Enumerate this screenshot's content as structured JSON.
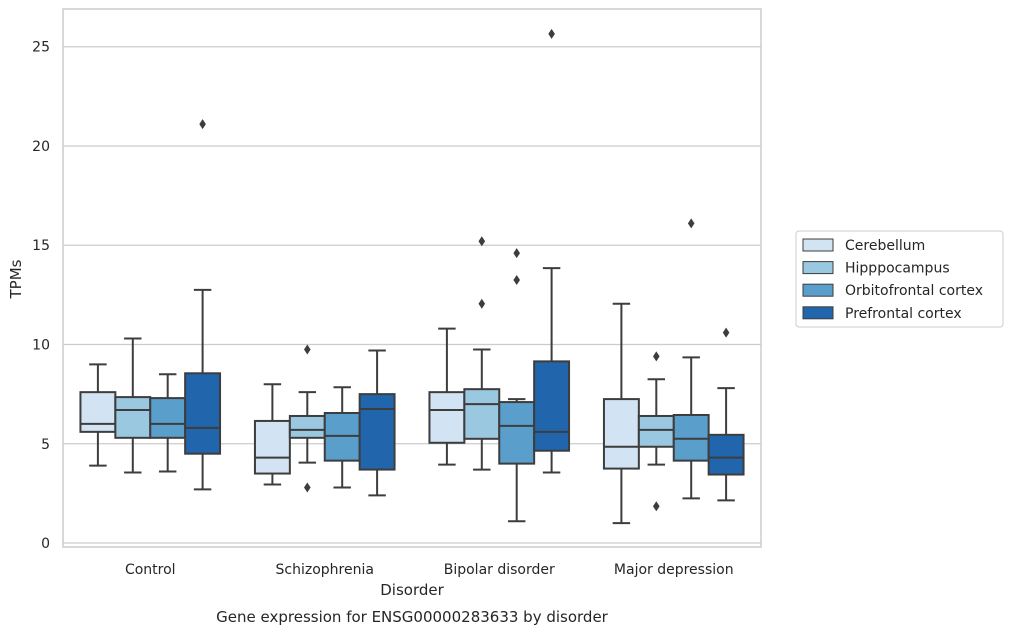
{
  "chart_data": {
    "type": "box",
    "title": "",
    "caption": "Gene expression for ENSG00000283633 by disorder",
    "xlabel": "Disorder",
    "ylabel": "TPMs",
    "ylim": [
      -0.2,
      26.9
    ],
    "yticks": [
      0,
      5,
      10,
      15,
      20,
      25
    ],
    "grid": "horizontal",
    "legend_position": "right",
    "categories": [
      "Control",
      "Schizophrenia",
      "Bipolar disorder",
      "Major depression"
    ],
    "series": [
      {
        "name": "Cerebellum",
        "color": "#d2e3f3",
        "boxes": [
          {
            "whisker_low": 3.9,
            "q1": 5.6,
            "median": 6.0,
            "q3": 7.6,
            "whisker_high": 9.0,
            "outliers": []
          },
          {
            "whisker_low": 2.95,
            "q1": 3.5,
            "median": 4.3,
            "q3": 6.15,
            "whisker_high": 8.0,
            "outliers": []
          },
          {
            "whisker_low": 3.95,
            "q1": 5.05,
            "median": 6.7,
            "q3": 7.6,
            "whisker_high": 10.8,
            "outliers": []
          },
          {
            "whisker_low": 1.0,
            "q1": 3.75,
            "median": 4.85,
            "q3": 7.25,
            "whisker_high": 12.05,
            "outliers": []
          }
        ]
      },
      {
        "name": "Hipppocampus",
        "color": "#9ac8e0",
        "boxes": [
          {
            "whisker_low": 3.55,
            "q1": 5.3,
            "median": 6.7,
            "q3": 7.35,
            "whisker_high": 10.3,
            "outliers": []
          },
          {
            "whisker_low": 4.05,
            "q1": 5.3,
            "median": 5.7,
            "q3": 6.4,
            "whisker_high": 7.6,
            "outliers": [
              2.8,
              9.75
            ]
          },
          {
            "whisker_low": 3.7,
            "q1": 5.25,
            "median": 7.0,
            "q3": 7.75,
            "whisker_high": 9.75,
            "outliers": [
              12.05,
              15.2
            ]
          },
          {
            "whisker_low": 3.95,
            "q1": 4.85,
            "median": 5.7,
            "q3": 6.4,
            "whisker_high": 8.25,
            "outliers": [
              1.85,
              9.4
            ]
          }
        ]
      },
      {
        "name": "Orbitofrontal cortex",
        "color": "#5a9ecc",
        "boxes": [
          {
            "whisker_low": 3.6,
            "q1": 5.3,
            "median": 6.0,
            "q3": 7.3,
            "whisker_high": 8.5,
            "outliers": []
          },
          {
            "whisker_low": 2.8,
            "q1": 4.15,
            "median": 5.4,
            "q3": 6.55,
            "whisker_high": 7.85,
            "outliers": []
          },
          {
            "whisker_low": 1.1,
            "q1": 4.0,
            "median": 5.9,
            "q3": 7.1,
            "whisker_high": 7.25,
            "outliers": [
              13.25,
              14.6
            ]
          },
          {
            "whisker_low": 2.25,
            "q1": 4.15,
            "median": 5.25,
            "q3": 6.45,
            "whisker_high": 9.35,
            "outliers": [
              16.1
            ]
          }
        ]
      },
      {
        "name": "Prefrontal cortex",
        "color": "#2166ac",
        "boxes": [
          {
            "whisker_low": 2.7,
            "q1": 4.5,
            "median": 5.8,
            "q3": 8.55,
            "whisker_high": 12.75,
            "outliers": [
              21.1
            ]
          },
          {
            "whisker_low": 2.4,
            "q1": 3.7,
            "median": 6.75,
            "q3": 7.5,
            "whisker_high": 9.7,
            "outliers": []
          },
          {
            "whisker_low": 3.55,
            "q1": 4.65,
            "median": 5.6,
            "q3": 9.15,
            "whisker_high": 13.85,
            "outliers": [
              25.65
            ]
          },
          {
            "whisker_low": 2.15,
            "q1": 3.45,
            "median": 4.3,
            "q3": 5.45,
            "whisker_high": 7.8,
            "outliers": [
              10.6
            ]
          }
        ]
      }
    ]
  }
}
